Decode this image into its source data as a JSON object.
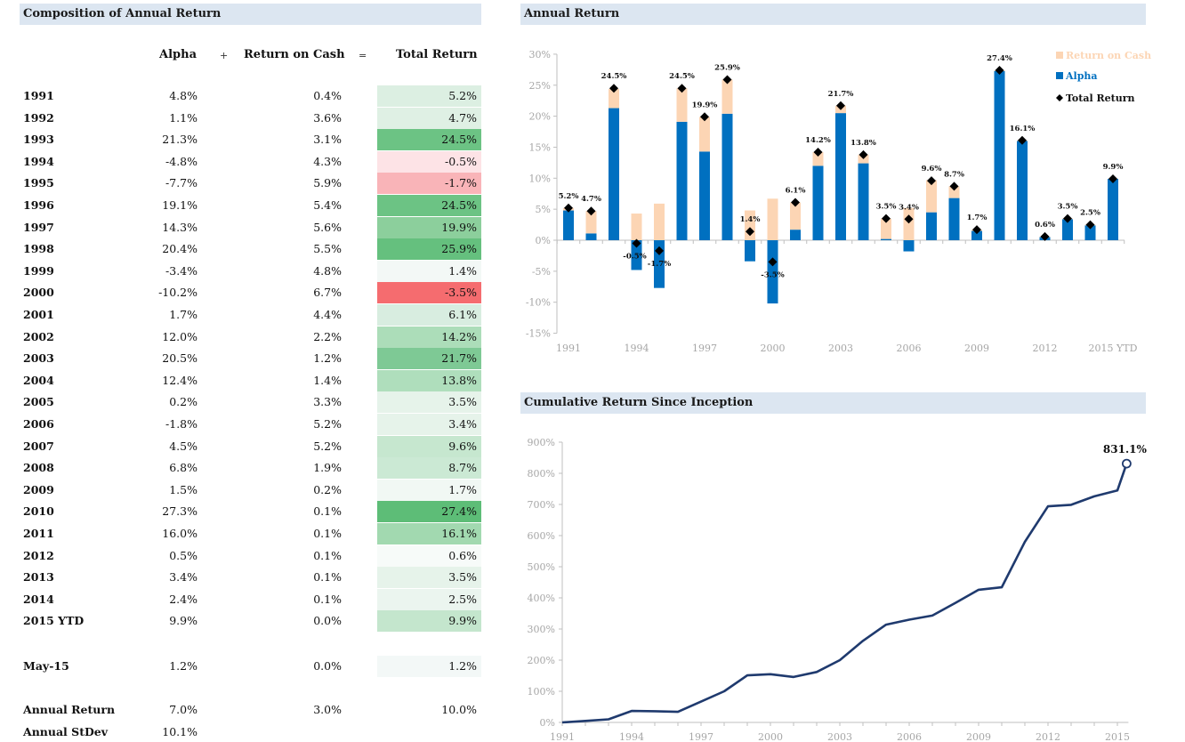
{
  "composition": {
    "title": "Composition of Annual Return",
    "headers": {
      "alpha": "Alpha",
      "plus": "+",
      "cash": "Return on Cash",
      "equals": "=",
      "total": "Total Return"
    },
    "rows": [
      {
        "year": "1991",
        "alpha": "4.8%",
        "cash": "0.4%",
        "total": "5.2%",
        "bg": "#dcefe2"
      },
      {
        "year": "1992",
        "alpha": "1.1%",
        "cash": "3.6%",
        "total": "4.7%",
        "bg": "#dff0e4"
      },
      {
        "year": "1993",
        "alpha": "21.3%",
        "cash": "3.1%",
        "total": "24.5%",
        "bg": "#6cc384"
      },
      {
        "year": "1994",
        "alpha": "-4.8%",
        "cash": "4.3%",
        "total": "-0.5%",
        "bg": "#fde3e6"
      },
      {
        "year": "1995",
        "alpha": "-7.7%",
        "cash": "5.9%",
        "total": "-1.7%",
        "bg": "#f9b4b8"
      },
      {
        "year": "1996",
        "alpha": "19.1%",
        "cash": "5.4%",
        "total": "24.5%",
        "bg": "#6cc384"
      },
      {
        "year": "1997",
        "alpha": "14.3%",
        "cash": "5.6%",
        "total": "19.9%",
        "bg": "#8ccf9c"
      },
      {
        "year": "1998",
        "alpha": "20.4%",
        "cash": "5.5%",
        "total": "25.9%",
        "bg": "#65c07e"
      },
      {
        "year": "1999",
        "alpha": "-3.4%",
        "cash": "4.8%",
        "total": "1.4%",
        "bg": "#f3f8f6"
      },
      {
        "year": "2000",
        "alpha": "-10.2%",
        "cash": "6.7%",
        "total": "-3.5%",
        "bg": "#f56c6f"
      },
      {
        "year": "2001",
        "alpha": "1.7%",
        "cash": "4.4%",
        "total": "6.1%",
        "bg": "#d8ede0"
      },
      {
        "year": "2002",
        "alpha": "12.0%",
        "cash": "2.2%",
        "total": "14.2%",
        "bg": "#acddb9"
      },
      {
        "year": "2003",
        "alpha": "20.5%",
        "cash": "1.2%",
        "total": "21.7%",
        "bg": "#7ec995"
      },
      {
        "year": "2004",
        "alpha": "12.4%",
        "cash": "1.4%",
        "total": "13.8%",
        "bg": "#afdebc"
      },
      {
        "year": "2005",
        "alpha": "0.2%",
        "cash": "3.3%",
        "total": "3.5%",
        "bg": "#e6f3ea"
      },
      {
        "year": "2006",
        "alpha": "-1.8%",
        "cash": "5.2%",
        "total": "3.4%",
        "bg": "#e6f3ea"
      },
      {
        "year": "2007",
        "alpha": "4.5%",
        "cash": "5.2%",
        "total": "9.6%",
        "bg": "#c6e7cf"
      },
      {
        "year": "2008",
        "alpha": "6.8%",
        "cash": "1.9%",
        "total": "8.7%",
        "bg": "#cbe9d4"
      },
      {
        "year": "2009",
        "alpha": "1.5%",
        "cash": "0.2%",
        "total": "1.7%",
        "bg": "#f1f8f4"
      },
      {
        "year": "2010",
        "alpha": "27.3%",
        "cash": "0.1%",
        "total": "27.4%",
        "bg": "#5dbd77"
      },
      {
        "year": "2011",
        "alpha": "16.0%",
        "cash": "0.1%",
        "total": "16.1%",
        "bg": "#a2d9b0"
      },
      {
        "year": "2012",
        "alpha": "0.5%",
        "cash": "0.1%",
        "total": "0.6%",
        "bg": "#f7fbf9"
      },
      {
        "year": "2013",
        "alpha": "3.4%",
        "cash": "0.1%",
        "total": "3.5%",
        "bg": "#e6f3ea"
      },
      {
        "year": "2014",
        "alpha": "2.4%",
        "cash": "0.1%",
        "total": "2.5%",
        "bg": "#ebf5ef"
      },
      {
        "year": "2015 YTD",
        "alpha": "9.9%",
        "cash": "0.0%",
        "total": "9.9%",
        "bg": "#c4e6cd"
      }
    ],
    "month_row": {
      "year": "May-15",
      "alpha": "1.2%",
      "cash": "0.0%",
      "total": "1.2%",
      "bg": "#f3f8f7"
    },
    "summary": [
      {
        "label": "Annual Return",
        "alpha": "7.0%",
        "cash": "3.0%",
        "total": "10.0%"
      },
      {
        "label": "Annual StDev",
        "alpha": "10.1%",
        "cash": "",
        "total": ""
      }
    ]
  },
  "chart_data": [
    {
      "type": "bar",
      "title": "Annual Return",
      "stacked": true,
      "categories": [
        "1991",
        "1992",
        "1993",
        "1994",
        "1995",
        "1996",
        "1997",
        "1998",
        "1999",
        "2000",
        "2001",
        "2002",
        "2003",
        "2004",
        "2005",
        "2006",
        "2007",
        "2008",
        "2009",
        "2010",
        "2011",
        "2012",
        "2013",
        "2014",
        "2015 YTD"
      ],
      "xtick_labels": [
        "1991",
        "1994",
        "1997",
        "2000",
        "2003",
        "2006",
        "2009",
        "2012",
        "2015 YTD"
      ],
      "series": [
        {
          "name": "Alpha",
          "color": "#0070c0",
          "values": [
            4.8,
            1.1,
            21.3,
            -4.8,
            -7.7,
            19.1,
            14.3,
            20.4,
            -3.4,
            -10.2,
            1.7,
            12.0,
            20.5,
            12.4,
            0.2,
            -1.8,
            4.5,
            6.8,
            1.5,
            27.3,
            16.0,
            0.5,
            3.4,
            2.4,
            9.9
          ]
        },
        {
          "name": "Return on Cash",
          "color": "#fcd5b4",
          "values": [
            0.4,
            3.6,
            3.1,
            4.3,
            5.9,
            5.4,
            5.6,
            5.5,
            4.8,
            6.7,
            4.4,
            2.2,
            1.2,
            1.4,
            3.3,
            5.2,
            5.2,
            1.9,
            0.2,
            0.1,
            0.1,
            0.1,
            0.1,
            0.1,
            0.0
          ]
        },
        {
          "name": "Total Return",
          "color": "#000000",
          "marker": "diamond",
          "values": [
            5.2,
            4.7,
            24.5,
            -0.5,
            -1.7,
            24.5,
            19.9,
            25.9,
            1.4,
            -3.5,
            6.1,
            14.2,
            21.7,
            13.8,
            3.5,
            3.4,
            9.6,
            8.7,
            1.7,
            27.4,
            16.1,
            0.6,
            3.5,
            2.5,
            9.9
          ]
        }
      ],
      "data_labels": [
        "5.2%",
        "4.7%",
        "24.5%",
        "-0.5%",
        "-1.7%",
        "24.5%",
        "19.9%",
        "25.9%",
        "1.4%",
        "-3.5%",
        "6.1%",
        "14.2%",
        "21.7%",
        "13.8%",
        "3.5%",
        "3.4%",
        "9.6%",
        "8.7%",
        "1.7%",
        "27.4%",
        "16.1%",
        "0.6%",
        "3.5%",
        "2.5%",
        "9.9%"
      ],
      "legend": [
        "Return on Cash",
        "Alpha",
        "Total Return"
      ],
      "legend_position": "top-right",
      "ylim": [
        -15,
        30
      ],
      "yticks": [
        "30%",
        "25%",
        "20%",
        "15%",
        "10%",
        "5%",
        "0%",
        "-5%",
        "-10%",
        "-15%"
      ],
      "ytick_values": [
        30,
        25,
        20,
        15,
        10,
        5,
        0,
        -5,
        -10,
        -15
      ],
      "grid": false
    },
    {
      "type": "line",
      "title": "Cumulative Return Since Inception",
      "x": [
        1991,
        1992,
        1993,
        1994,
        1995,
        1996,
        1997,
        1998,
        1999,
        2000,
        2001,
        2002,
        2003,
        2004,
        2005,
        2006,
        2007,
        2008,
        2009,
        2010,
        2011,
        2012,
        2013,
        2014,
        2015,
        2015.4
      ],
      "series": [
        {
          "name": "Cumulative Return",
          "color": "#1f3a6e",
          "values": [
            0,
            5,
            10,
            37,
            36,
            34,
            67,
            100,
            151,
            155,
            146,
            162,
            200,
            262,
            314,
            330,
            343,
            384,
            426,
            434,
            580,
            694,
            699,
            726,
            745,
            831.1
          ]
        }
      ],
      "end_label": "831.1%",
      "xtick_labels": [
        "1991",
        "1994",
        "1997",
        "2000",
        "2003",
        "2006",
        "2009",
        "2012",
        "2015"
      ],
      "xtick_values": [
        1991,
        1994,
        1997,
        2000,
        2003,
        2006,
        2009,
        2012,
        2015
      ],
      "yticks": [
        "900%",
        "800%",
        "700%",
        "600%",
        "500%",
        "400%",
        "300%",
        "200%",
        "100%",
        "0%"
      ],
      "ytick_values": [
        900,
        800,
        700,
        600,
        500,
        400,
        300,
        200,
        100,
        0
      ],
      "ylim": [
        0,
        900
      ],
      "grid": false
    }
  ]
}
